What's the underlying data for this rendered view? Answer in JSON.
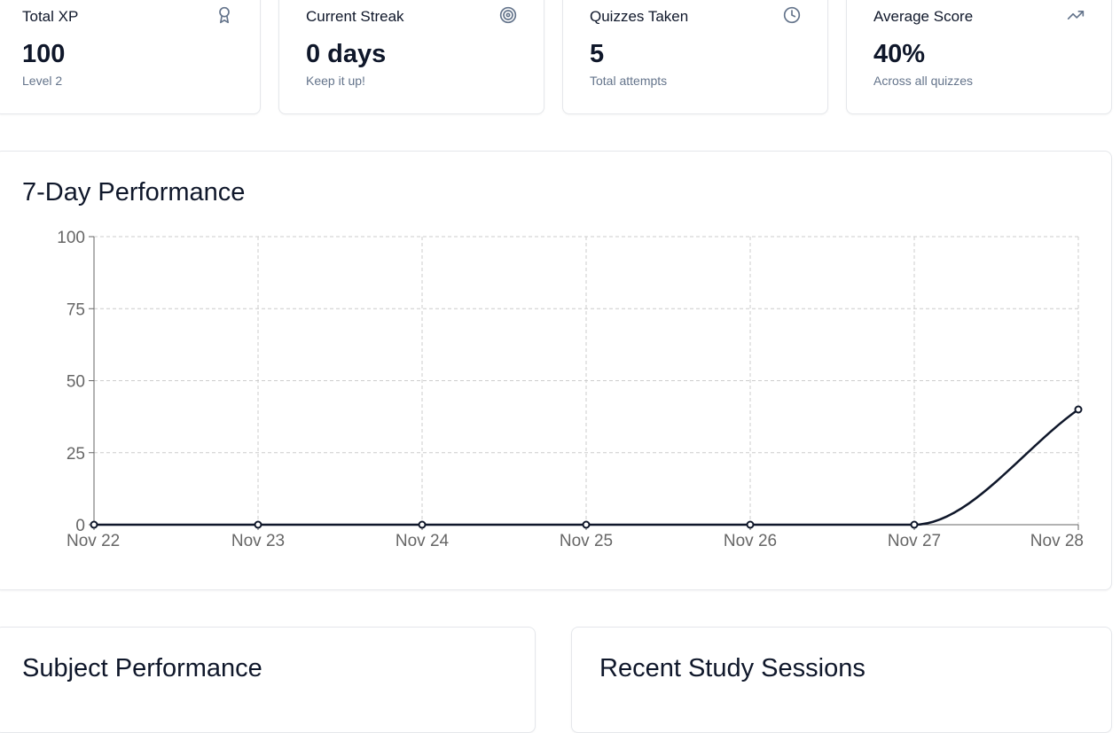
{
  "stats": [
    {
      "title": "Total XP",
      "value": "100",
      "sub": "Level 2",
      "icon": "award-icon"
    },
    {
      "title": "Current Streak",
      "value": "0 days",
      "sub": "Keep it up!",
      "icon": "target-icon"
    },
    {
      "title": "Quizzes Taken",
      "value": "5",
      "sub": "Total attempts",
      "icon": "clock-icon"
    },
    {
      "title": "Average Score",
      "value": "40%",
      "sub": "Across all quizzes",
      "icon": "trending-up-icon"
    }
  ],
  "performance": {
    "title": "7-Day Performance"
  },
  "subject": {
    "title": "Subject Performance"
  },
  "sessions": {
    "title": "Recent Study Sessions"
  },
  "colors": {
    "line": "#0f172a",
    "grid": "#cccccc",
    "axis": "#666666",
    "muted": "#64748b"
  },
  "chart_data": {
    "type": "line",
    "categories": [
      "Nov 22",
      "Nov 23",
      "Nov 24",
      "Nov 25",
      "Nov 26",
      "Nov 27",
      "Nov 28"
    ],
    "series": [
      {
        "values": [
          0,
          0,
          0,
          0,
          0,
          0,
          40
        ]
      }
    ],
    "yticks": [
      0,
      25,
      50,
      75,
      100
    ],
    "ylim": [
      0,
      100
    ],
    "grid": true,
    "legend": "none",
    "title": "7-Day Performance",
    "xlabel": "",
    "ylabel": ""
  }
}
